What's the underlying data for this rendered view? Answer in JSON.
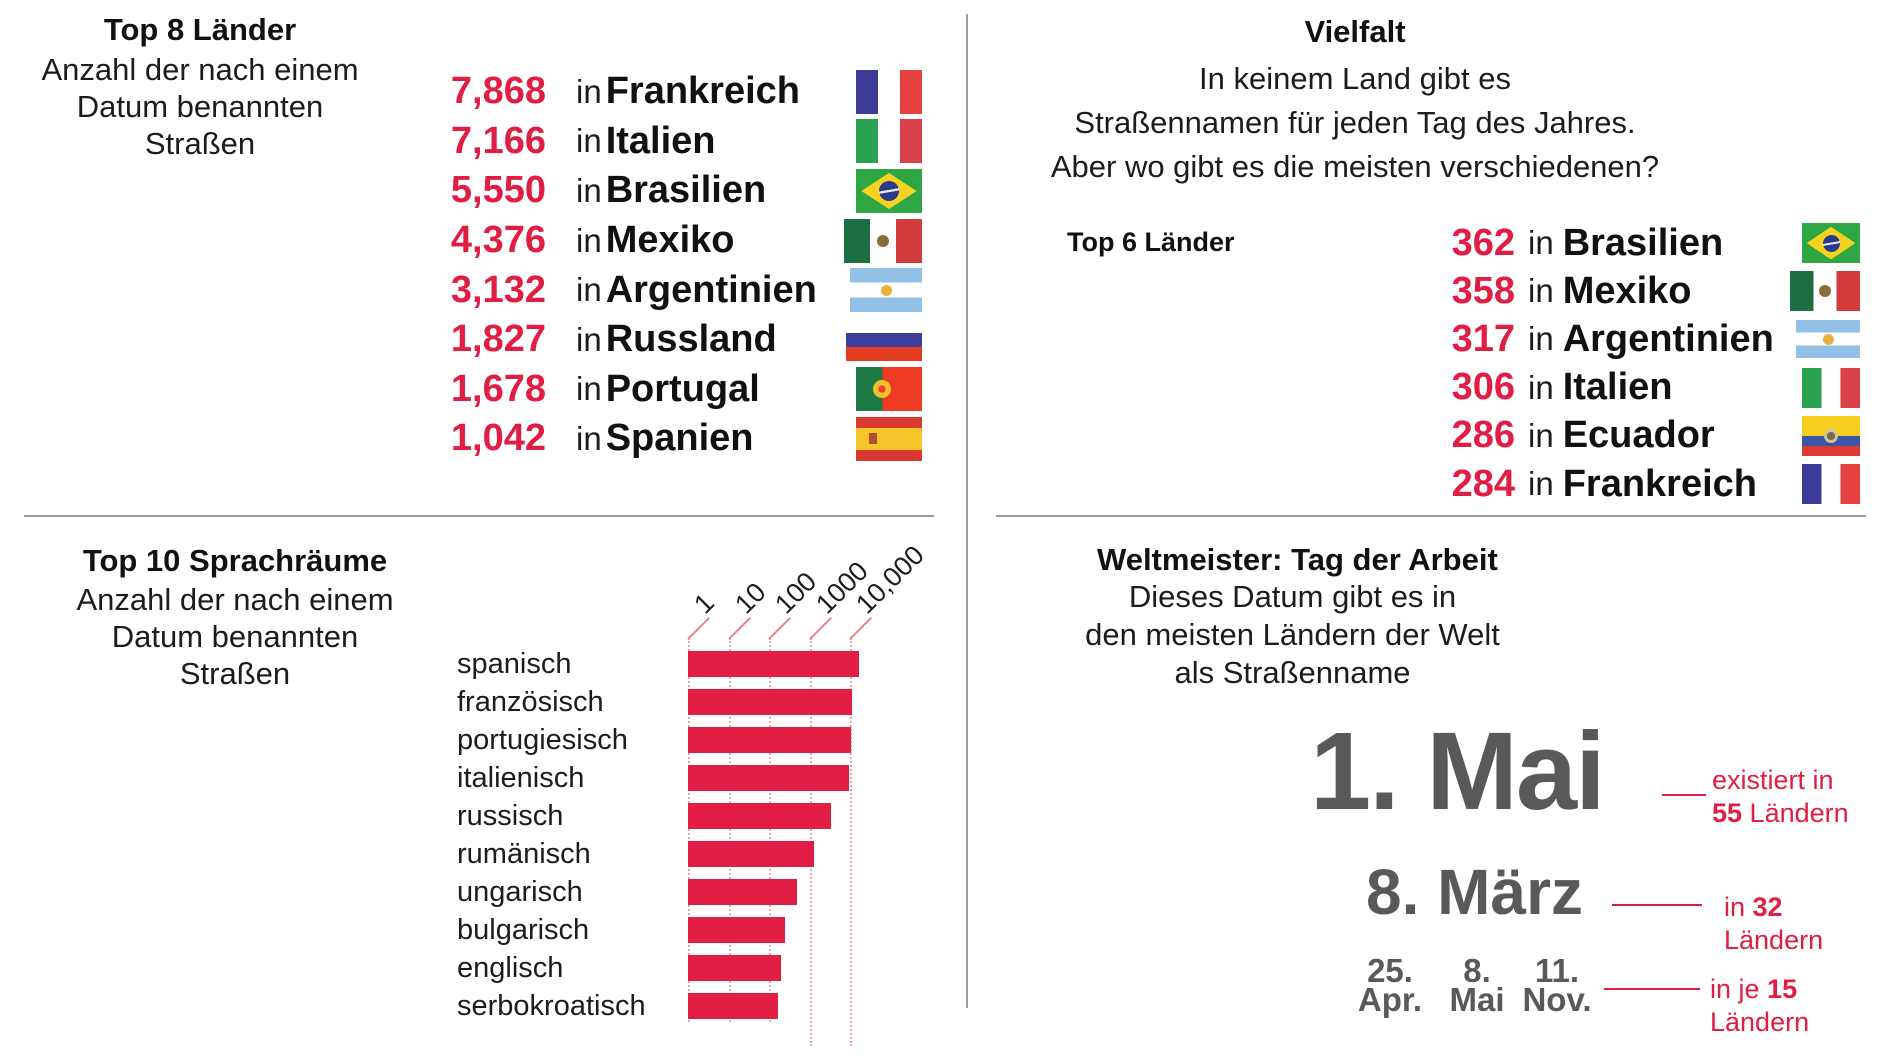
{
  "colors": {
    "accent_red": "#e21d44",
    "text_dark": "#1c1c1c",
    "date_gray": "#58595b",
    "divider_gray": "#9b9b9b",
    "grid_dot_red": "#eba6ae"
  },
  "list_in_word": "in",
  "top_left": {
    "title": "Top 8 Länder",
    "subtitle_lines": [
      "Anzahl der nach einem",
      "Datum benannten",
      "Straßen"
    ],
    "rows": [
      {
        "value": "7,868",
        "country": "Frankreich",
        "flag": "fr"
      },
      {
        "value": "7,166",
        "country": "Italien",
        "flag": "it"
      },
      {
        "value": "5,550",
        "country": "Brasilien",
        "flag": "br"
      },
      {
        "value": "4,376",
        "country": "Mexiko",
        "flag": "mx"
      },
      {
        "value": "3,132",
        "country": "Argentinien",
        "flag": "ar"
      },
      {
        "value": "1,827",
        "country": "Russland",
        "flag": "ru"
      },
      {
        "value": "1,678",
        "country": "Portugal",
        "flag": "pt"
      },
      {
        "value": "1,042",
        "country": "Spanien",
        "flag": "es"
      }
    ]
  },
  "top_right": {
    "title": "Vielfalt",
    "intro_lines": [
      "In keinem Land gibt es",
      "Straßennamen für jeden Tag des Jahres.",
      "Aber wo gibt es die meisten verschiedenen?"
    ],
    "list_label": "Top 6 Länder",
    "rows": [
      {
        "value": "362",
        "country": "Brasilien",
        "flag": "br"
      },
      {
        "value": "358",
        "country": "Mexiko",
        "flag": "mx"
      },
      {
        "value": "317",
        "country": "Argentinien",
        "flag": "ar"
      },
      {
        "value": "306",
        "country": "Italien",
        "flag": "it"
      },
      {
        "value": "286",
        "country": "Ecuador",
        "flag": "ec"
      },
      {
        "value": "284",
        "country": "Frankreich",
        "flag": "fr"
      }
    ]
  },
  "bottom_left": {
    "title": "Top 10 Sprachräume",
    "subtitle_lines": [
      "Anzahl der nach einem",
      "Datum benannten",
      "Straßen"
    ],
    "axis_tick_labels": [
      "1",
      "10",
      "100",
      "1000",
      "10,000"
    ]
  },
  "bottom_right": {
    "title": "Weltmeister: Tag der Arbeit",
    "subtitle_lines": [
      "Dieses Datum gibt es in",
      "den meisten Ländern der Welt",
      "als Straßenname"
    ],
    "big_date": "1. Mai",
    "ann1_line1": "existiert in",
    "ann1_bold": "55",
    "ann1_rest": " Ländern",
    "second_date": "8. März",
    "ann2_prefix": "in ",
    "ann2_bold": "32",
    "ann2_rest": " Ländern",
    "date_columns": [
      [
        "25.",
        "Apr."
      ],
      [
        "8.",
        "Mai"
      ],
      [
        "11.",
        "Nov."
      ]
    ],
    "ann3_prefix": "in je ",
    "ann3_bold": "15",
    "ann3_rest": " Ländern"
  },
  "chart_data": [
    {
      "type": "bar",
      "title": "Top 8 Länder",
      "subtitle": "Anzahl der nach einem Datum benannten Straßen",
      "categories": [
        "Frankreich",
        "Italien",
        "Brasilien",
        "Mexiko",
        "Argentinien",
        "Russland",
        "Portugal",
        "Spanien"
      ],
      "values": [
        7868,
        7166,
        5550,
        4376,
        3132,
        1827,
        1678,
        1042
      ]
    },
    {
      "type": "bar",
      "title": "Vielfalt – Top 6 Länder",
      "subtitle": "Anzahl verschiedener Datums-Straßennamen",
      "categories": [
        "Brasilien",
        "Mexiko",
        "Argentinien",
        "Italien",
        "Ecuador",
        "Frankreich"
      ],
      "values": [
        362,
        358,
        317,
        306,
        286,
        284
      ]
    },
    {
      "type": "bar",
      "title": "Top 10 Sprachräume",
      "subtitle": "Anzahl der nach einem Datum benannten Straßen",
      "scale": "log",
      "xlim": [
        1,
        20000
      ],
      "axis_ticks": [
        1,
        10,
        100,
        1000,
        10000
      ],
      "axis_tick_labels": [
        "1",
        "10",
        "100",
        "1000",
        "10,000"
      ],
      "categories": [
        "spanisch",
        "französisch",
        "portugiesisch",
        "italienisch",
        "russisch",
        "rumänisch",
        "ungarisch",
        "bulgarisch",
        "englisch",
        "serbokroatisch"
      ],
      "values": [
        17000,
        11000,
        10500,
        9500,
        3400,
        1300,
        490,
        250,
        200,
        165
      ],
      "note": "values estimated from logarithmic axis"
    },
    {
      "type": "table",
      "title": "Weltmeister: Tag der Arbeit",
      "rows": [
        [
          "1. Mai",
          "existiert in 55 Ländern"
        ],
        [
          "8. März",
          "in 32 Ländern"
        ],
        [
          "25. Apr. / 8. Mai / 11. Nov.",
          "in je 15 Ländern"
        ]
      ]
    }
  ]
}
